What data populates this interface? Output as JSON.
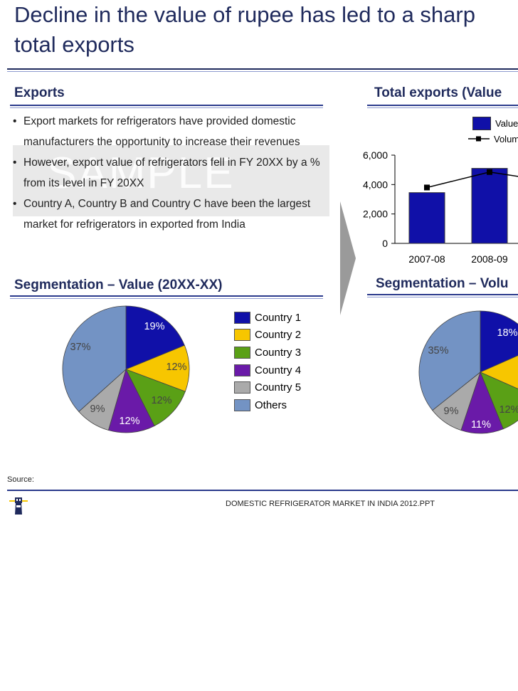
{
  "page": {
    "title_line1": "Decline in the value of rupee has led to a sharp",
    "title_line2": "total exports",
    "source_label": "Source:",
    "footer": "DOMESTIC REFRIGERATOR MARKET IN INDIA 2012.PPT",
    "watermark": "SAMPLE"
  },
  "exports": {
    "heading": "Exports",
    "bullets": [
      "Export markets for refrigerators have provided domestic manufacturers the opportunity to increase their revenues",
      "However, export value of refrigerators fell in FY 20XX by a % from its level in FY 20XX",
      "Country A, Country B and Country C have been the largest market for refrigerators in exported from India"
    ]
  },
  "bar_section": {
    "heading": "Total exports (Value"
  },
  "seg_value": {
    "heading": "Segmentation – Value (20XX-XX)"
  },
  "seg_volume": {
    "heading": "Segmentation – Volu"
  },
  "colors": {
    "country1": "#1010a8",
    "country2": "#f7c600",
    "country3": "#5aa016",
    "country4": "#6a1aa8",
    "country5": "#aaaaaa",
    "others": "#7393c4",
    "heading": "#1f2a5c"
  },
  "chart_data": [
    {
      "type": "bar",
      "title": "Total exports (Value",
      "categories": [
        "2007-08",
        "2008-09"
      ],
      "series": [
        {
          "name": "Value",
          "values": [
            3450,
            5100
          ]
        },
        {
          "name": "Volum",
          "type": "line",
          "values": [
            3800,
            4850
          ]
        }
      ],
      "ylim": [
        0,
        6000
      ],
      "yticks": [
        "0",
        "2,000",
        "4,000",
        "6,000"
      ],
      "legend": [
        "Value",
        "Volum"
      ]
    },
    {
      "type": "pie",
      "title": "Segmentation – Value (20XX-XX)",
      "labels": [
        "Country 1",
        "Country 2",
        "Country 3",
        "Country 4",
        "Country 5",
        "Others"
      ],
      "values": [
        19,
        12,
        12,
        12,
        9,
        37
      ],
      "value_labels": [
        "19%",
        "12%",
        "12%",
        "12%",
        "9%",
        "37%"
      ]
    },
    {
      "type": "pie",
      "title": "Segmentation – Volu",
      "labels": [
        "Country 1",
        "Country 2",
        "Country 3",
        "Country 4",
        "Country 5",
        "Others"
      ],
      "values": [
        18,
        13,
        12,
        11,
        9,
        35
      ],
      "value_labels": [
        "18%",
        "",
        "12%",
        "11%",
        "9%",
        "35%"
      ]
    }
  ]
}
